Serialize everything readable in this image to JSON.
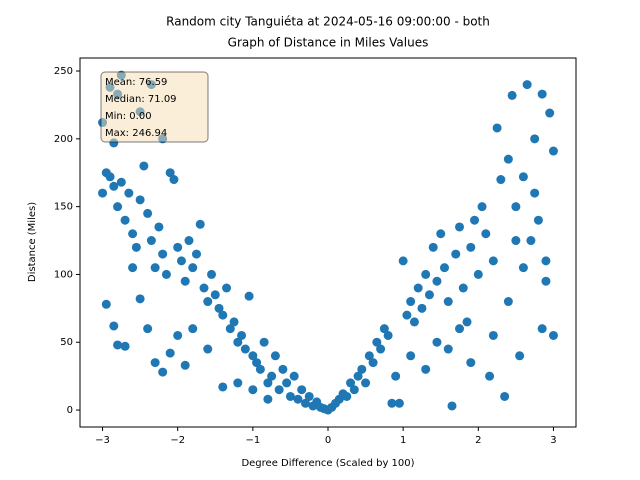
{
  "chart_data": {
    "type": "scatter",
    "title": "Random city Tanguiéta at 2024-05-16 09:00:00  - both",
    "subtitle": "Graph of Distance in Miles Values",
    "x_label": "Degree Difference (Scaled by 100)",
    "y_label": "Distance (Miles)",
    "color": "#1f77b4",
    "stats": [
      "Mean: 76.59",
      "Median: 71.09",
      "Min: 0.00",
      "Max: 246.94"
    ],
    "xlim": [
      -3.3,
      3.3
    ],
    "ylim": [
      -12.5,
      259.6
    ],
    "xticks": [
      {
        "value": -3,
        "label": "−3"
      },
      {
        "value": -2,
        "label": "−2"
      },
      {
        "value": -1,
        "label": "−1"
      },
      0,
      1,
      2,
      3
    ],
    "yticks": [
      0,
      50,
      100,
      150,
      200,
      250
    ],
    "x": [
      -3.0,
      -2.95,
      -2.9,
      -2.85,
      -2.8,
      -2.75,
      -2.7,
      -2.65,
      -2.6,
      -2.55,
      -2.5,
      -2.45,
      -2.4,
      -2.35,
      -2.3,
      -2.25,
      -2.2,
      -2.15,
      -2.1,
      -2.05,
      -2.0,
      -1.95,
      -1.9,
      -1.85,
      -1.8,
      -1.75,
      -1.7,
      -1.65,
      -1.6,
      -1.55,
      -1.5,
      -1.45,
      -1.4,
      -1.35,
      -1.3,
      -1.25,
      -1.2,
      -1.15,
      -1.1,
      -1.05,
      -1.0,
      -0.95,
      -0.9,
      -0.85,
      -0.8,
      -0.75,
      -0.7,
      -0.65,
      -0.6,
      -0.55,
      -0.5,
      -0.45,
      -0.4,
      -0.35,
      -0.3,
      -0.25,
      -0.2,
      -0.15,
      -0.1,
      -0.05,
      0,
      -2.95,
      -2.85,
      -2.8,
      -2.7,
      -2.6,
      -2.5,
      -2.4,
      -2.3,
      -2.2,
      -2.1,
      -2.0,
      -1.9,
      -1.8,
      -1.6,
      -1.4,
      -1.2,
      -1.0,
      -0.8,
      -2.75,
      -2.9,
      -2.8,
      -2.5,
      -2.35,
      -2.2,
      -2.85,
      -3.0,
      0.05,
      0.1,
      0.15,
      0.2,
      0.25,
      0.3,
      0.35,
      0.4,
      0.45,
      0.5,
      0.55,
      0.6,
      0.65,
      0.7,
      0.75,
      0.8,
      0.85,
      0.95,
      1.0,
      1.05,
      1.1,
      1.15,
      1.2,
      1.25,
      1.3,
      1.35,
      1.4,
      1.45,
      1.5,
      1.55,
      1.6,
      1.65,
      1.7,
      1.75,
      1.8,
      1.85,
      1.9,
      1.95,
      2.0,
      2.05,
      2.1,
      2.15,
      2.2,
      2.25,
      2.3,
      2.35,
      2.4,
      2.45,
      2.5,
      2.55,
      2.6,
      2.65,
      2.7,
      2.75,
      2.8,
      2.85,
      2.9,
      2.95,
      3.0,
      3.0,
      2.85,
      2.6,
      2.4,
      2.2,
      1.9,
      1.6,
      1.3,
      1.1,
      0.9,
      2.9,
      2.75,
      2.5,
      1.75,
      1.45
    ],
    "values": [
      160,
      175,
      172,
      165,
      150,
      168,
      140,
      160,
      130,
      120,
      155,
      180,
      145,
      125,
      105,
      135,
      115,
      100,
      175,
      170,
      120,
      110,
      95,
      125,
      105,
      115,
      137,
      90,
      80,
      100,
      85,
      75,
      70,
      90,
      60,
      65,
      50,
      55,
      45,
      84,
      40,
      35,
      30,
      50,
      20,
      25,
      40,
      15,
      30,
      20,
      10,
      25,
      8,
      15,
      5,
      10,
      3,
      6,
      2,
      1,
      0,
      78,
      62,
      48,
      47,
      105,
      82,
      60,
      35,
      28,
      42,
      55,
      33,
      60,
      45,
      17,
      20,
      15,
      8,
      246.94,
      238,
      233,
      220,
      240,
      200,
      197,
      212,
      2,
      5,
      8,
      12,
      10,
      20,
      15,
      25,
      30,
      20,
      40,
      35,
      50,
      45,
      60,
      55,
      5,
      5,
      110,
      70,
      80,
      65,
      90,
      75,
      100,
      85,
      120,
      95,
      130,
      105,
      80,
      3,
      115,
      135,
      90,
      65,
      120,
      140,
      100,
      150,
      130,
      25,
      110,
      208,
      170,
      10,
      185,
      232,
      150,
      40,
      172,
      240,
      125,
      200,
      140,
      233,
      110,
      219,
      191,
      55,
      60,
      105,
      80,
      55,
      35,
      45,
      30,
      40,
      25,
      95,
      160,
      125,
      60,
      50
    ]
  }
}
